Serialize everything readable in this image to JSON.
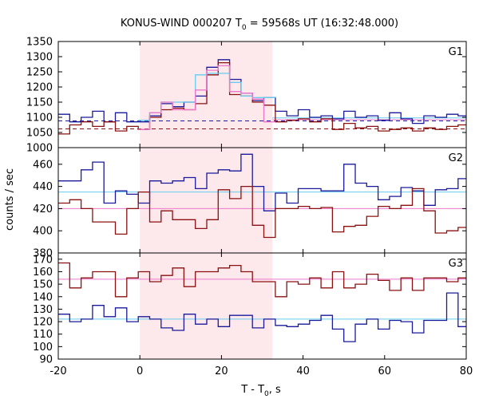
{
  "chart_data": {
    "type": "line",
    "title": "KONUS-WIND 000207 T₀ = 59568s UT (16:32:48.000)",
    "title_parts": {
      "prefix": "KONUS-WIND 000207 T",
      "sub": "0",
      "suffix": " = 59568s UT (16:32:48.000)"
    },
    "xlabel_parts": {
      "prefix": "T - T",
      "sub": "0",
      "suffix": ", s"
    },
    "ylabel": "counts / sec",
    "x_ticks": [
      "-20",
      "0",
      "20",
      "40",
      "60",
      "80"
    ],
    "xlim": [
      -20,
      80
    ],
    "shaded_interval": [
      0,
      32.5
    ],
    "colors": {
      "navy": "#1a1a9a",
      "maroon": "#8b1010",
      "cyan": "#66ccee",
      "pink": "#ee77cc",
      "shade": "#fde8ec"
    },
    "panels": [
      {
        "label": "G1",
        "ylim": [
          1000,
          1350
        ],
        "y_ticks": [
          "1000",
          "1050",
          "1100",
          "1150",
          "1200",
          "1250",
          "1300",
          "1350"
        ],
        "x_edges": [
          -20,
          -17.2,
          -14.4,
          -11.6,
          -8.8,
          -6,
          -3.2,
          -0.4,
          2.4,
          5.2,
          8,
          10.8,
          13.6,
          16.4,
          19.2,
          22,
          24.8,
          27.6,
          30.4,
          33.2,
          36,
          38.8,
          41.6,
          44.4,
          47.2,
          50,
          52.8,
          55.6,
          58.4,
          61.2,
          64,
          66.8,
          69.6,
          72.4,
          75.2,
          78,
          80
        ],
        "series": [
          {
            "color": "navy",
            "values": [
              1110,
              1085,
              1100,
              1120,
              1085,
              1115,
              1085,
              1085,
              1105,
              1145,
              1135,
              1150,
              1170,
              1265,
              1290,
              1225,
              1180,
              1155,
              1165,
              1120,
              1105,
              1125,
              1100,
              1105,
              1095,
              1120,
              1100,
              1105,
              1090,
              1115,
              1095,
              1080,
              1105,
              1100,
              1110,
              1105
            ]
          },
          {
            "color": "maroon",
            "values": [
              1045,
              1075,
              1085,
              1070,
              1085,
              1055,
              1070,
              1060,
              1100,
              1125,
              1130,
              1125,
              1145,
              1240,
              1280,
              1175,
              1170,
              1150,
              1140,
              1085,
              1090,
              1095,
              1085,
              1095,
              1060,
              1080,
              1065,
              1070,
              1055,
              1060,
              1065,
              1055,
              1065,
              1060,
              1070,
              1075
            ]
          },
          {
            "color": "cyan",
            "values": [
              null,
              null,
              null,
              null,
              null,
              null,
              null,
              1090,
              1115,
              1150,
              1150,
              1150,
              1240,
              1245,
              1245,
              1215,
              1170,
              1165,
              1165,
              null,
              null,
              null,
              null,
              null,
              null,
              null,
              null,
              null,
              null,
              null,
              null,
              null,
              null,
              null,
              null,
              null
            ]
          },
          {
            "color": "pink",
            "values": [
              null,
              null,
              null,
              null,
              null,
              null,
              null,
              1060,
              1115,
              1150,
              1125,
              1125,
              1190,
              1255,
              1270,
              1185,
              1180,
              1160,
              1085,
              null,
              null,
              null,
              null,
              null,
              null,
              null,
              null,
              null,
              null,
              null,
              null,
              null,
              null,
              null,
              null,
              null
            ]
          }
        ],
        "hlines": [
          {
            "color": "navy",
            "value": 1088,
            "dashed": true,
            "from": -20,
            "to": 80
          },
          {
            "color": "maroon",
            "value": 1062,
            "dashed": true,
            "from": -20,
            "to": 80
          },
          {
            "color": "cyan",
            "value": 1098,
            "dashed": false,
            "from": 32.5,
            "to": 80
          },
          {
            "color": "pink",
            "value": 1092,
            "dashed": false,
            "from": 32.5,
            "to": 80
          }
        ]
      },
      {
        "label": "G2",
        "ylim": [
          380,
          475
        ],
        "y_ticks": [
          "380",
          "400",
          "420",
          "440",
          "460"
        ],
        "x_edges": [
          -20,
          -17.2,
          -14.4,
          -11.6,
          -8.8,
          -6,
          -3.2,
          -0.4,
          2.4,
          5.2,
          8,
          10.8,
          13.6,
          16.4,
          19.2,
          22,
          24.8,
          27.6,
          30.4,
          33.2,
          36,
          38.8,
          41.6,
          44.4,
          47.2,
          50,
          52.8,
          55.6,
          58.4,
          61.2,
          64,
          66.8,
          69.6,
          72.4,
          75.2,
          78,
          80
        ],
        "series": [
          {
            "color": "navy",
            "values": [
              445,
              445,
              455,
              462,
              425,
              436,
              433,
              425,
              445,
              443,
              445,
              448,
              438,
              452,
              455,
              454,
              469,
              440,
              418,
              434,
              425,
              438,
              438,
              436,
              436,
              460,
              443,
              440,
              428,
              431,
              439,
              436,
              423,
              437,
              438,
              447
            ]
          },
          {
            "color": "maroon",
            "values": [
              425,
              428,
              420,
              408,
              408,
              397,
              420,
              435,
              408,
              418,
              410,
              410,
              402,
              410,
              437,
              429,
              440,
              405,
              394,
              420,
              420,
              422,
              420,
              421,
              399,
              404,
              405,
              413,
              422,
              420,
              423,
              438,
              418,
              398,
              400,
              403
            ]
          }
        ],
        "hlines": [
          {
            "color": "cyan",
            "value": 435,
            "dashed": false,
            "from": -20,
            "to": 80
          },
          {
            "color": "pink",
            "value": 420,
            "dashed": false,
            "from": -20,
            "to": 80
          }
        ]
      },
      {
        "label": "G3",
        "ylim": [
          90,
          175
        ],
        "y_ticks": [
          "90",
          "100",
          "110",
          "120",
          "130",
          "140",
          "150",
          "160",
          "170"
        ],
        "x_edges": [
          -20,
          -17.2,
          -14.4,
          -11.6,
          -8.8,
          -6,
          -3.2,
          -0.4,
          2.4,
          5.2,
          8,
          10.8,
          13.6,
          16.4,
          19.2,
          22,
          24.8,
          27.6,
          30.4,
          33.2,
          36,
          38.8,
          41.6,
          44.4,
          47.2,
          50,
          52.8,
          55.6,
          58.4,
          61.2,
          64,
          66.8,
          69.6,
          72.4,
          75.2,
          78,
          80
        ],
        "series": [
          {
            "color": "navy",
            "values": [
              126,
              120,
              122,
              133,
              124,
              131,
              120,
              124,
              122,
              115,
              113,
              126,
              118,
              122,
              116,
              125,
              125,
              115,
              122,
              117,
              116,
              118,
              121,
              125,
              114,
              104,
              118,
              122,
              114,
              121,
              120,
              111,
              121,
              121,
              143,
              116
            ]
          },
          {
            "color": "maroon",
            "values": [
              167,
              147,
              155,
              160,
              160,
              140,
              155,
              160,
              152,
              157,
              163,
              148,
              160,
              160,
              163,
              165,
              160,
              152,
              152,
              140,
              152,
              150,
              155,
              147,
              160,
              147,
              150,
              158,
              153,
              145,
              155,
              145,
              155,
              155,
              152,
              155
            ]
          }
        ],
        "hlines": [
          {
            "color": "cyan",
            "value": 122,
            "dashed": false,
            "from": -20,
            "to": 80
          },
          {
            "color": "pink",
            "value": 154,
            "dashed": false,
            "from": -20,
            "to": 80
          }
        ]
      }
    ]
  }
}
